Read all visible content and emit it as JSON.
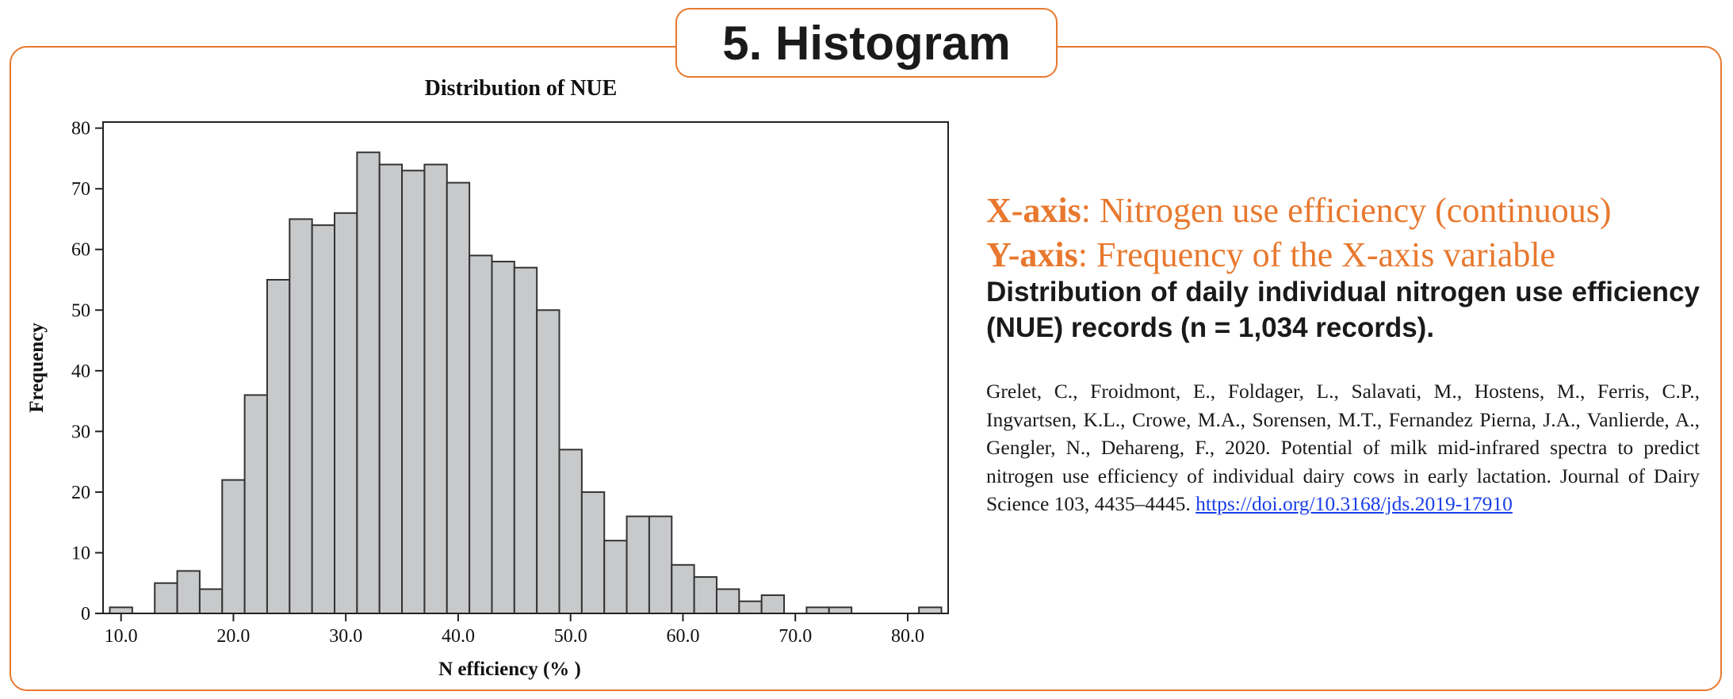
{
  "header": {
    "title": "5. Histogram"
  },
  "colors": {
    "accent": "#e8782e",
    "bar_fill": "#c8c9cb",
    "bar_stroke": "#333333",
    "link": "#1a3ee8"
  },
  "explanation": {
    "x_axis_label": "X-axis",
    "x_axis_text": ": Nitrogen use efficiency (continuous)",
    "y_axis_label": "Y-axis",
    "y_axis_text": ": Frequency of the X-axis variable",
    "caption": "Distribution of daily individual nitrogen use efficiency (NUE) records (n = 1,034 records).",
    "reference": "Grelet, C., Froidmont, E., Foldager, L., Salavati, M., Hostens, M., Ferris, C.P., Ingvartsen, K.L., Crowe, M.A., Sorensen, M.T., Fernandez Pierna, J.A., Vanlierde, A., Gengler, N., Dehareng, F., 2020. Potential of milk mid-infrared spectra to predict nitrogen use efficiency of individual dairy cows in early lactation. Journal of Dairy Science 103, 4435–4445.",
    "doi_link": "https://doi.org/10.3168/jds.2019-17910"
  },
  "chart_data": {
    "type": "bar",
    "title": "Distribution of NUE",
    "xlabel": "N efficiency (% )",
    "ylabel": "Frequency",
    "bin_width": 2,
    "bin_starts": [
      9,
      11,
      13,
      15,
      17,
      19,
      21,
      23,
      25,
      27,
      29,
      31,
      33,
      35,
      37,
      39,
      41,
      43,
      45,
      47,
      49,
      51,
      53,
      55,
      57,
      59,
      61,
      63,
      65,
      67,
      69,
      71,
      73,
      75,
      77,
      79,
      81
    ],
    "values": [
      1,
      0,
      5,
      7,
      4,
      22,
      36,
      55,
      65,
      64,
      66,
      76,
      74,
      73,
      74,
      71,
      59,
      58,
      57,
      50,
      27,
      20,
      12,
      16,
      16,
      8,
      6,
      4,
      2,
      3,
      0,
      1,
      1,
      0,
      0,
      0,
      1
    ],
    "xlim": [
      8.4,
      83.6
    ],
    "ylim": [
      0,
      81
    ],
    "x_ticks": [
      "10.0",
      "20.0",
      "30.0",
      "40.0",
      "50.0",
      "60.0",
      "70.0",
      "80.0"
    ],
    "y_ticks": [
      "0",
      "10",
      "20",
      "30",
      "40",
      "50",
      "60",
      "70",
      "80"
    ],
    "grid": false,
    "legend": "none"
  }
}
